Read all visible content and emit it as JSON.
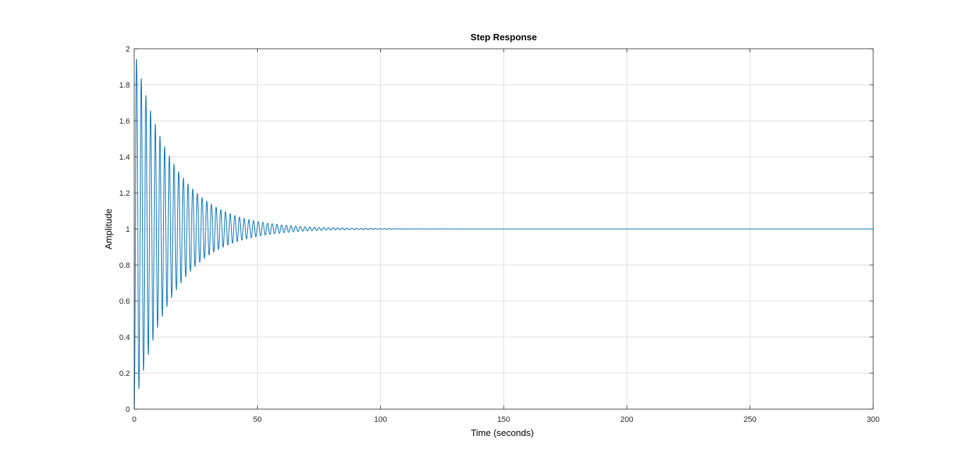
{
  "chart_data": {
    "type": "line",
    "title": "Step Response",
    "xlabel": "Time (seconds)",
    "ylabel": "Amplitude",
    "xlim": [
      0,
      300
    ],
    "ylim": [
      0,
      2
    ],
    "xticks": [
      0,
      50,
      100,
      150,
      200,
      250,
      300
    ],
    "yticks": [
      0,
      0.2,
      0.4,
      0.6,
      0.8,
      1,
      1.2,
      1.4,
      1.6,
      1.8,
      2
    ],
    "xtick_labels": [
      "0",
      "50",
      "100",
      "150",
      "200",
      "250",
      "300"
    ],
    "ytick_labels": [
      "0",
      "0.2",
      "0.4",
      "0.6",
      "0.8",
      "1",
      "1.2",
      "1.4",
      "1.6",
      "1.8",
      "2"
    ],
    "grid": true,
    "series": [
      {
        "color": "#0072bd",
        "period": 1.9,
        "steady_state": 1,
        "peaks": [
          {
            "t": 1.0,
            "y": 1.925
          },
          {
            "t": 2.9,
            "y": 1.82
          },
          {
            "t": 4.8,
            "y": 1.73
          },
          {
            "t": 6.7,
            "y": 1.645
          },
          {
            "t": 8.6,
            "y": 1.575
          }
        ],
        "troughs": [
          {
            "t": 1.9,
            "y": 0.115
          },
          {
            "t": 3.8,
            "y": 0.215
          },
          {
            "t": 5.7,
            "y": 0.305
          },
          {
            "t": 7.6,
            "y": 0.38
          },
          {
            "t": 9.5,
            "y": 0.45
          }
        ],
        "settles_by": 130,
        "x_end": 300
      }
    ]
  }
}
